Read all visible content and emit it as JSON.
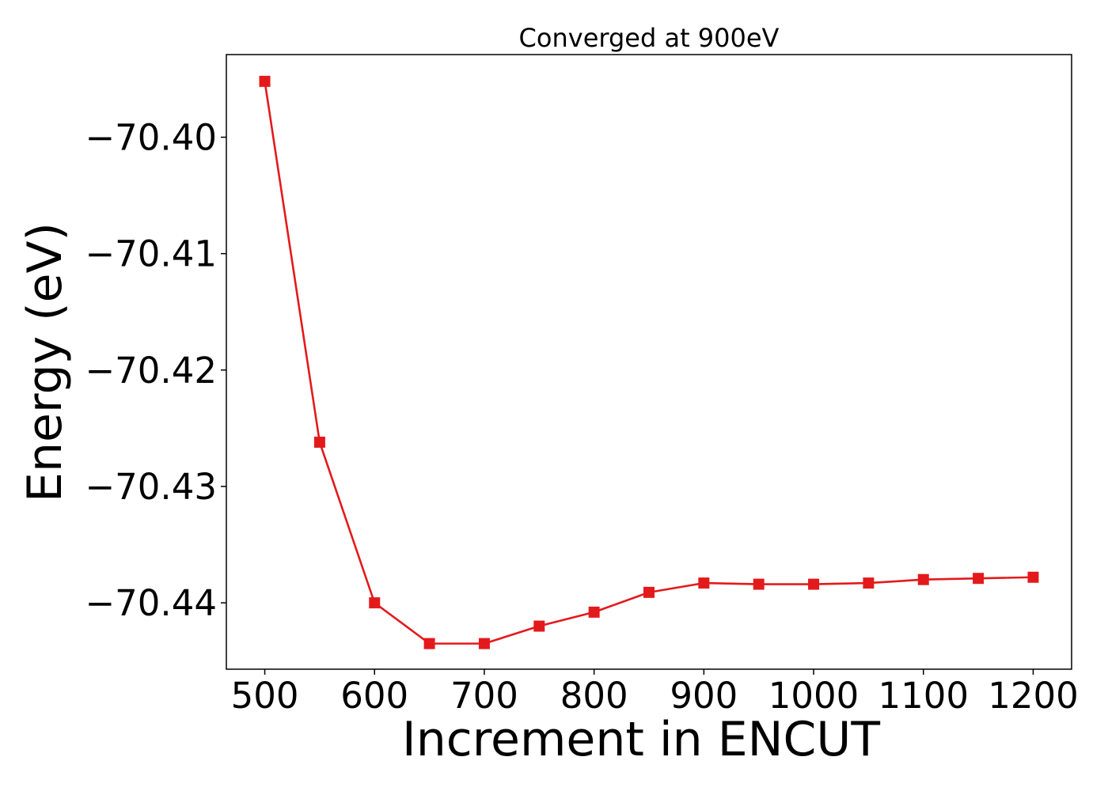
{
  "chart_data": {
    "type": "line",
    "title": "Converged at 900eV",
    "xlabel": "Increment in ENCUT",
    "ylabel": "Energy (eV)",
    "xlim": [
      465,
      1235
    ],
    "ylim": [
      -70.4457,
      -70.3929
    ],
    "x_ticks": [
      500,
      600,
      700,
      800,
      900,
      1000,
      1100,
      1200
    ],
    "x_tick_labels": [
      "500",
      "600",
      "700",
      "800",
      "900",
      "1000",
      "1100",
      "1200"
    ],
    "y_ticks": [
      -70.4,
      -70.41,
      -70.42,
      -70.43,
      -70.44
    ],
    "y_tick_labels": [
      "−70.40",
      "−70.41",
      "−70.42",
      "−70.43",
      "−70.44"
    ],
    "grid": false,
    "series": [
      {
        "color": "#e31a1c",
        "marker": "square",
        "x": [
          500,
          550,
          600,
          650,
          700,
          750,
          800,
          850,
          900,
          950,
          1000,
          1050,
          1100,
          1150,
          1200
        ],
        "values": [
          -70.3952,
          -70.4262,
          -70.44,
          -70.4435,
          -70.4435,
          -70.442,
          -70.4408,
          -70.4391,
          -70.4383,
          -70.4384,
          -70.4384,
          -70.4383,
          -70.438,
          -70.4379,
          -70.4378
        ]
      }
    ]
  }
}
